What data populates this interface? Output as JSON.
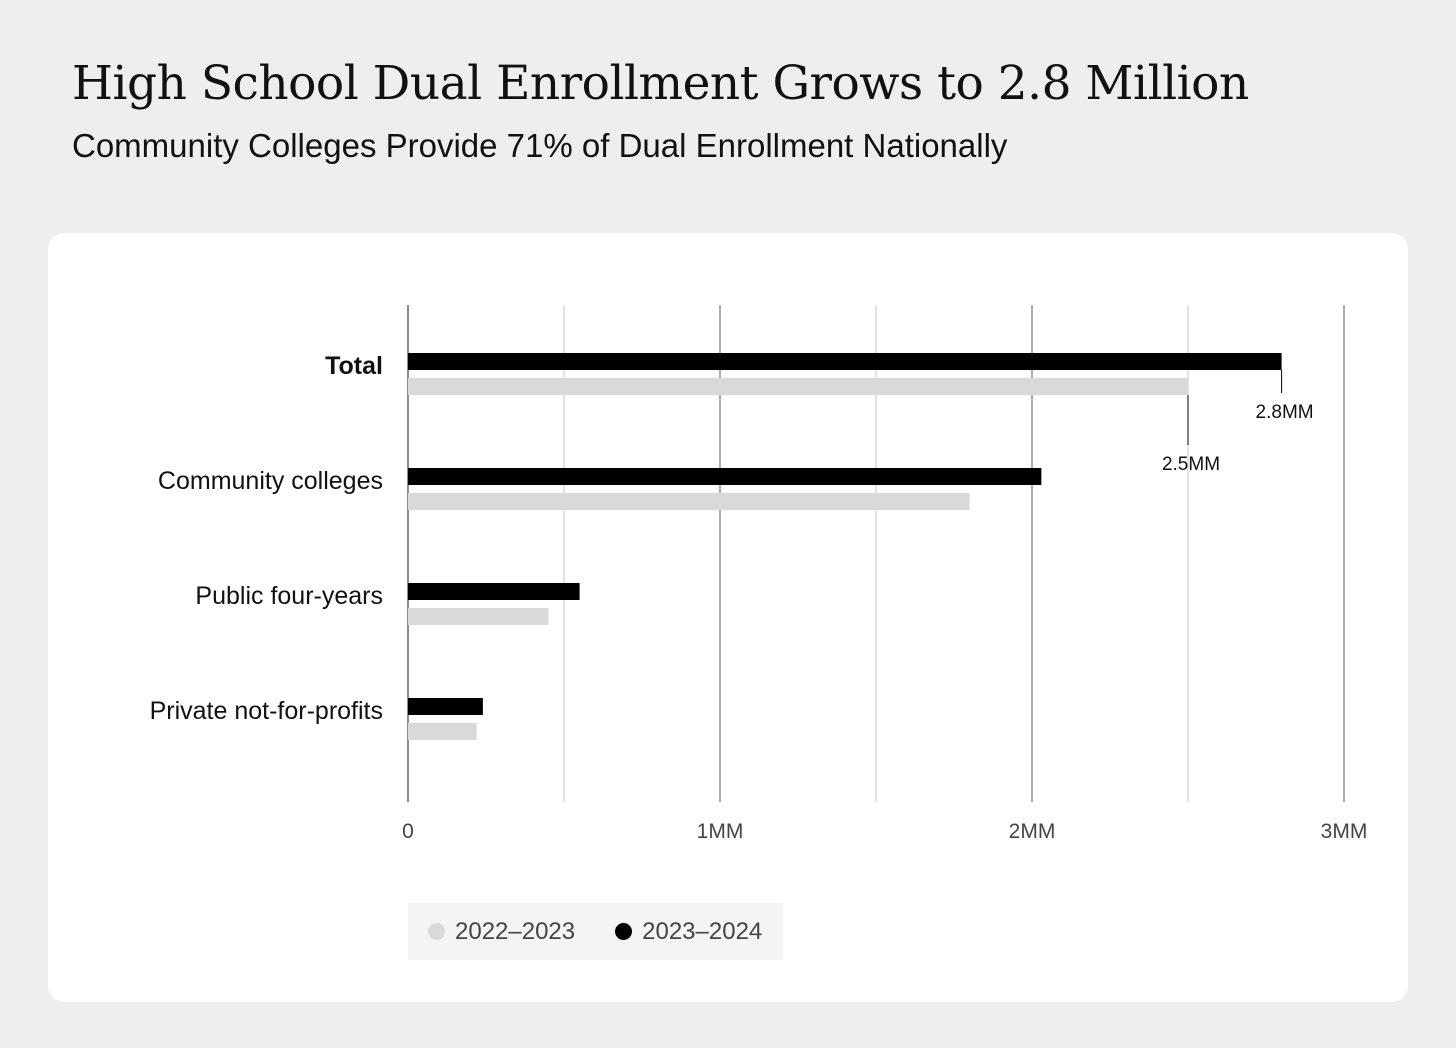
{
  "title": "High School Dual Enrollment Grows to 2.8 Million",
  "subtitle": "Community Colleges Provide 71% of Dual Enrollment Nationally",
  "colors": {
    "page_background": "#eeefec",
    "card_background": "#ffffff",
    "series_2022_2023": "#d9d9d9",
    "series_2023_2024": "#000000"
  },
  "chart_data": {
    "type": "bar",
    "orientation": "horizontal",
    "categories": [
      "Total",
      "Community colleges",
      "Public four-years",
      "Private not-for-profits"
    ],
    "category_bold": [
      "Total"
    ],
    "series": [
      {
        "name": "2023–2024",
        "color": "#000000",
        "values": [
          2.8,
          2.03,
          0.55,
          0.24
        ]
      },
      {
        "name": "2022–2023",
        "color": "#d9d9d9",
        "values": [
          2.5,
          1.8,
          0.45,
          0.22
        ]
      }
    ],
    "value_unit": "million",
    "xlim": [
      0,
      3
    ],
    "x_ticks": [
      {
        "value": 0,
        "label": "0"
      },
      {
        "value": 1,
        "label": "1MM"
      },
      {
        "value": 2,
        "label": "2MM"
      },
      {
        "value": 3,
        "label": "3MM"
      }
    ],
    "x_gridlines": [
      0,
      0.5,
      1,
      1.5,
      2,
      2.5,
      3
    ],
    "annotations": [
      {
        "category": "Total",
        "series": "2023–2024",
        "value": 2.8,
        "label": "2.8MM"
      },
      {
        "category": "Total",
        "series": "2022–2023",
        "value": 2.5,
        "label": "2.5MM"
      }
    ],
    "legend": {
      "position": "bottom-left",
      "items": [
        {
          "label": "2022–2023",
          "color": "#d9d9d9"
        },
        {
          "label": "2023–2024",
          "color": "#000000"
        }
      ]
    }
  }
}
